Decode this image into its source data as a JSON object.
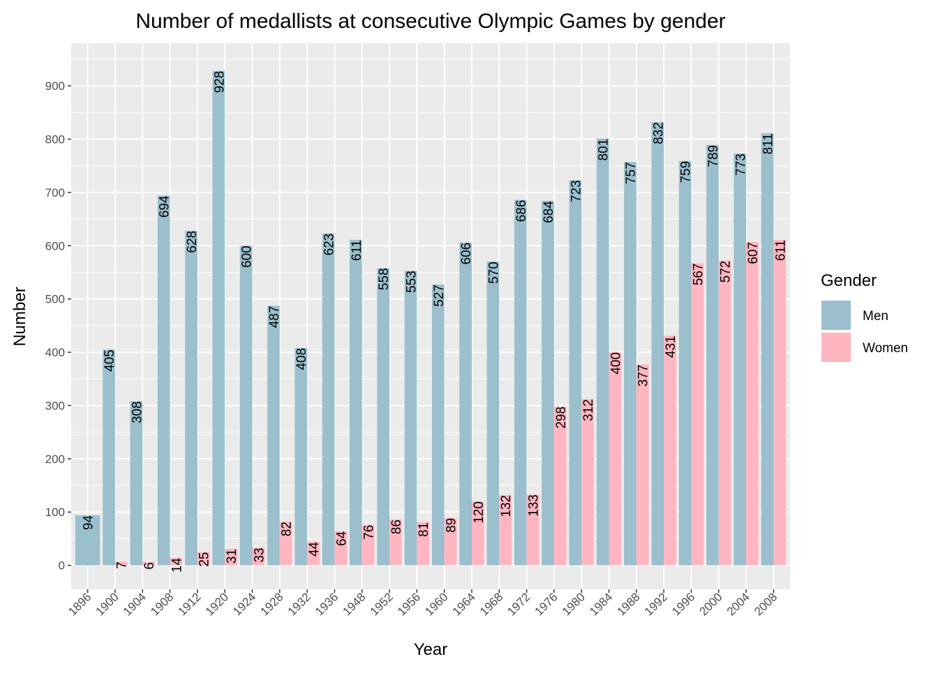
{
  "chart_data": {
    "type": "bar",
    "title": "Number of medallists at consecutive Olympic Games by gender",
    "xlabel": "Year",
    "ylabel": "Number",
    "ylim": [
      -45,
      980
    ],
    "yticks": [
      0,
      100,
      200,
      300,
      400,
      500,
      600,
      700,
      800,
      900
    ],
    "grid": true,
    "legend_position": "right",
    "legend_title": "Gender",
    "categories": [
      "1896",
      "1900",
      "1904",
      "1908",
      "1912",
      "1920",
      "1924",
      "1928",
      "1932",
      "1936",
      "1948",
      "1952",
      "1956",
      "1960",
      "1964",
      "1968",
      "1972",
      "1976",
      "1980",
      "1984",
      "1988",
      "1992",
      "1996",
      "2000",
      "2004",
      "2008"
    ],
    "series": [
      {
        "name": "Men",
        "color": "#9bbfcd",
        "values": [
          94,
          405,
          308,
          694,
          628,
          928,
          600,
          487,
          408,
          623,
          611,
          558,
          553,
          527,
          606,
          570,
          686,
          684,
          723,
          801,
          757,
          832,
          759,
          789,
          773,
          811
        ]
      },
      {
        "name": "Women",
        "color": "#ffb6c1",
        "values": [
          null,
          7,
          6,
          14,
          25,
          31,
          33,
          82,
          44,
          64,
          76,
          86,
          81,
          89,
          120,
          132,
          133,
          298,
          312,
          400,
          377,
          431,
          567,
          572,
          607,
          611
        ]
      }
    ]
  }
}
